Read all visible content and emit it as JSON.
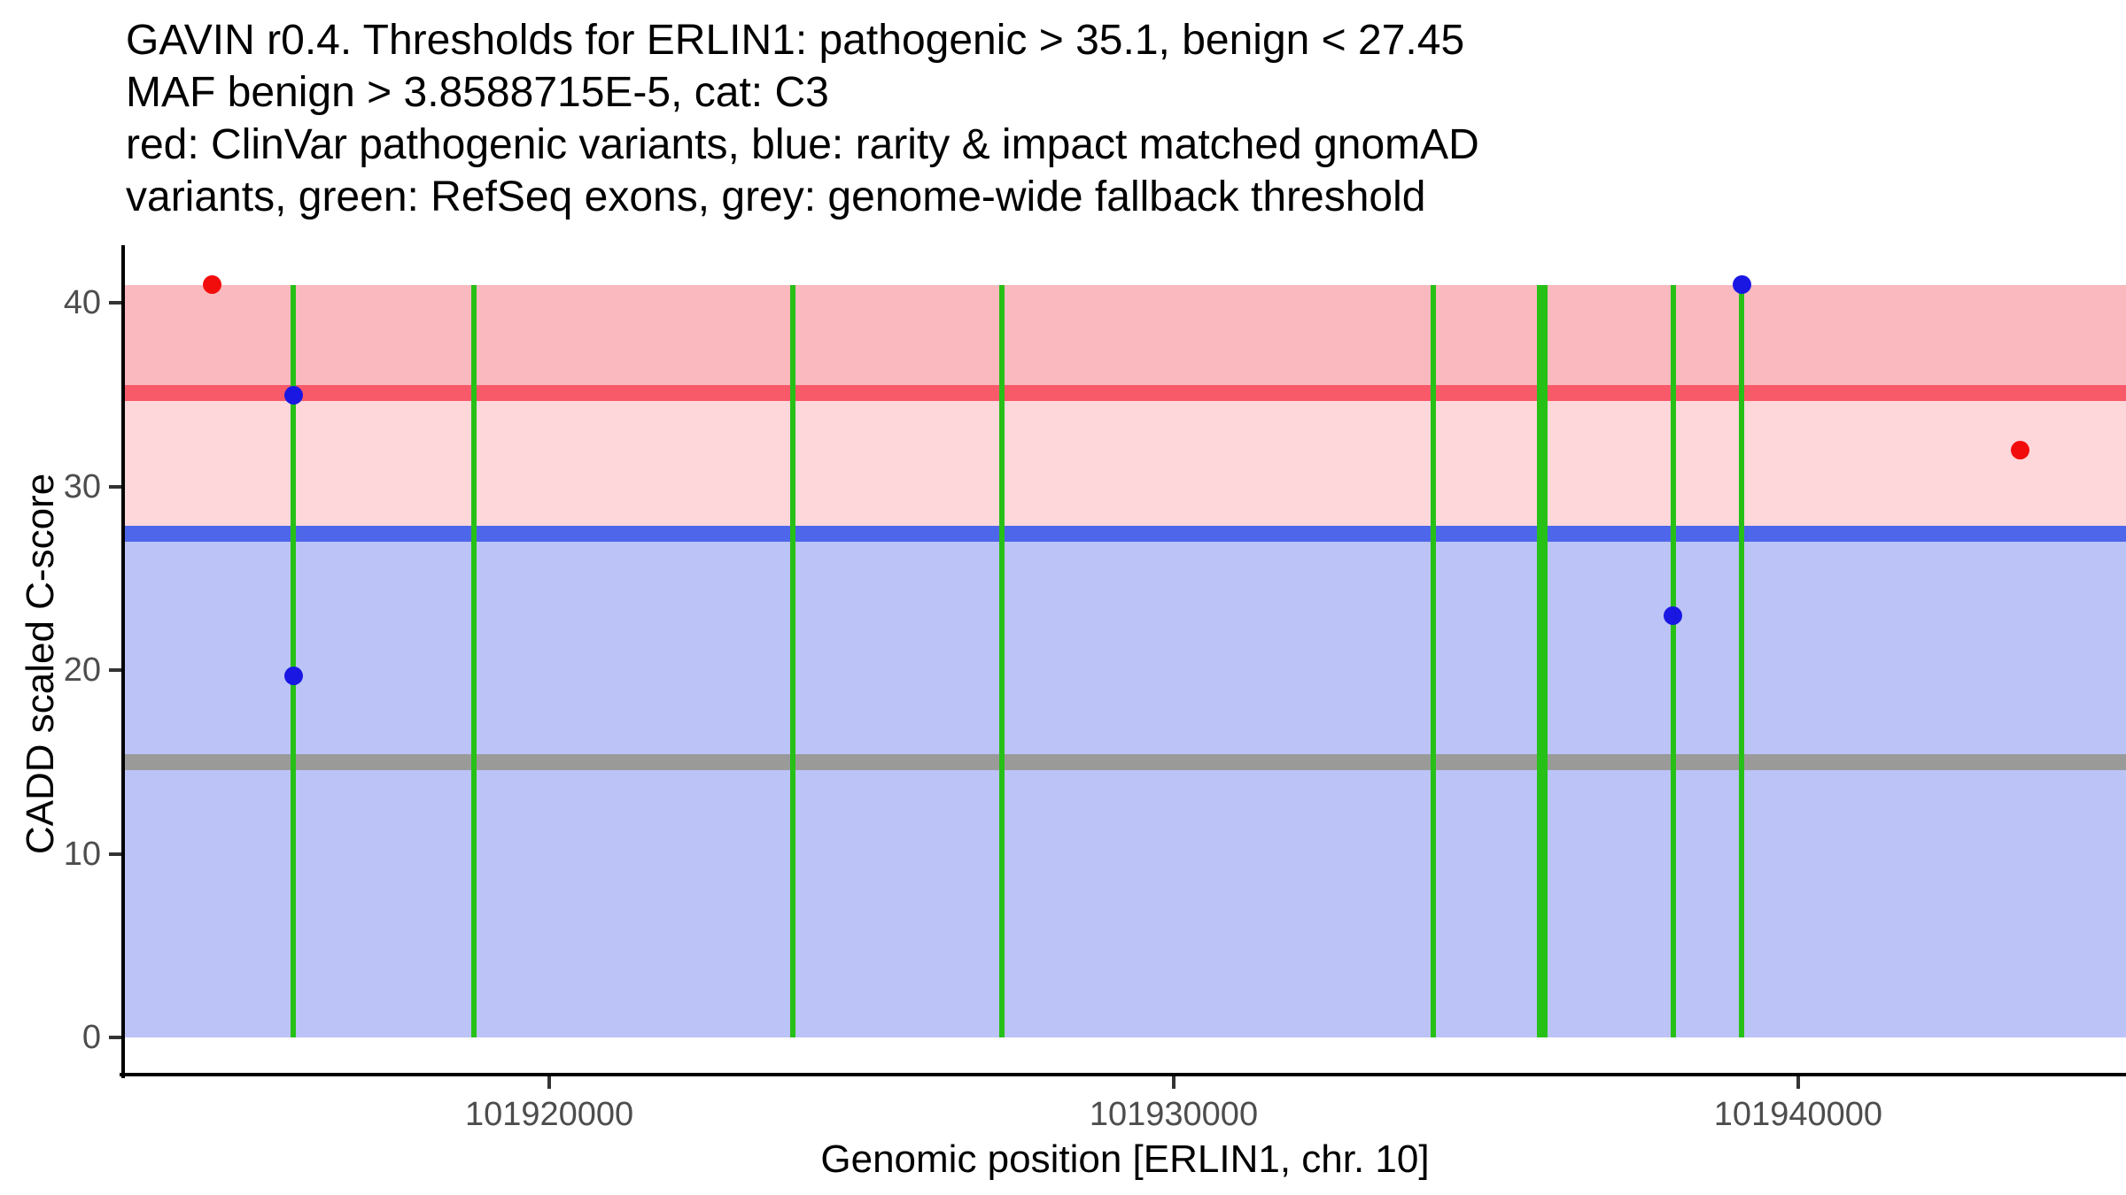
{
  "chart_data": {
    "type": "scatter",
    "title_lines": [
      "GAVIN r0.4. Thresholds for ERLIN1: pathogenic > 35.1, benign < 27.45",
      "MAF benign > 3.8588715E-5, cat: C3",
      "red: ClinVar pathogenic variants, blue: rarity & impact matched gnomAD",
      "variants, green: RefSeq exons, grey: genome-wide fallback threshold"
    ],
    "xlabel": "Genomic position [ERLIN1, chr. 10]",
    "ylabel": "CADD scaled C-score",
    "gene": "ERLIN1",
    "chromosome": "10",
    "gavin_release": "r0.4",
    "category": "C3",
    "maf_benign_threshold": "3.8588715E-5",
    "x_domain": [
      101913190,
      101945250
    ],
    "y_domain": [
      -2.0,
      43.05
    ],
    "x_ticks": [
      {
        "value": 101920000,
        "label": "101920000"
      },
      {
        "value": 101930000,
        "label": "101930000"
      },
      {
        "value": 101940000,
        "label": "101940000"
      }
    ],
    "y_ticks": [
      {
        "value": 0,
        "label": "0"
      },
      {
        "value": 10,
        "label": "10"
      },
      {
        "value": 20,
        "label": "20"
      },
      {
        "value": 30,
        "label": "30"
      },
      {
        "value": 40,
        "label": "40"
      }
    ],
    "grid": false,
    "legend_position": "none",
    "thresholds": {
      "pathogenic_cadd_gt": 35.1,
      "benign_cadd_lt": 27.45,
      "genome_wide_fallback": 15,
      "band_top": 41,
      "band_bottom": 0
    },
    "exons_refseq": [
      {
        "pos": 101915900,
        "thick": false
      },
      {
        "pos": 101918800,
        "thick": false
      },
      {
        "pos": 101923900,
        "thick": false
      },
      {
        "pos": 101927250,
        "thick": false
      },
      {
        "pos": 101934150,
        "thick": false
      },
      {
        "pos": 101935900,
        "thick": true
      },
      {
        "pos": 101938000,
        "thick": false
      },
      {
        "pos": 101939100,
        "thick": false
      }
    ],
    "variants": [
      {
        "pos": 101914600,
        "cadd": 41,
        "group": "clinvar_pathogenic"
      },
      {
        "pos": 101915900,
        "cadd": 35,
        "group": "gnomad_matched"
      },
      {
        "pos": 101915900,
        "cadd": 19.7,
        "group": "gnomad_matched"
      },
      {
        "pos": 101938000,
        "cadd": 23,
        "group": "gnomad_matched"
      },
      {
        "pos": 101939100,
        "cadd": 41,
        "group": "gnomad_matched"
      },
      {
        "pos": 101943550,
        "cadd": 32,
        "group": "clinvar_pathogenic"
      }
    ],
    "colors": {
      "pathogenic_band": "#f9b9be",
      "pathogenic_line": "#f85a6a",
      "intermediate_band": "#fdd7da",
      "benign_line": "#4e66e9",
      "benign_band": "#bcc3f6",
      "fallback_line": "#9a9a99",
      "exon_line": "#27c017",
      "clinvar_dot": "#f20d0d",
      "gnomad_dot": "#1a17e3",
      "axis_line": "#000000",
      "tick_label": "#4d4d4d",
      "title_text": "#000000"
    }
  }
}
